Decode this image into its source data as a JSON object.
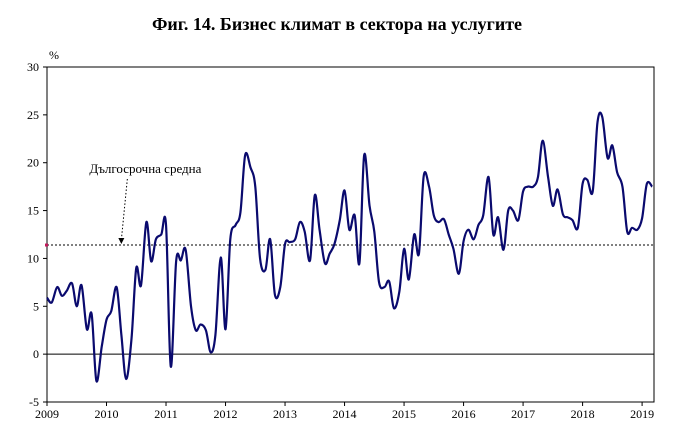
{
  "title": "Фиг. 14. Бизнес климат в сектора на услугите",
  "chart_data": {
    "type": "line",
    "title": "Фиг. 14. Бизнес климат в сектора на услугите",
    "ylabel": "%",
    "ylim": [
      -5,
      30
    ],
    "yticks": [
      -5,
      0,
      5,
      10,
      15,
      20,
      25,
      30
    ],
    "xlim": [
      2009,
      2019.2
    ],
    "xticks": [
      2009,
      2010,
      2011,
      2012,
      2013,
      2014,
      2015,
      2016,
      2017,
      2018,
      2019
    ],
    "xtick_labels": [
      "2009",
      "2010",
      "2011",
      "2012",
      "2013",
      "2014",
      "2015",
      "2016",
      "2017",
      "2018",
      "2019"
    ],
    "grid": false,
    "reference_line": {
      "label": "Дългосрочна средна",
      "value": 11.4
    },
    "series": [
      {
        "color": "#0a0a6e",
        "points": [
          [
            2009.0,
            5.9
          ],
          [
            2009.08,
            5.4
          ],
          [
            2009.17,
            7.0
          ],
          [
            2009.25,
            6.1
          ],
          [
            2009.33,
            6.6
          ],
          [
            2009.42,
            7.4
          ],
          [
            2009.5,
            5.0
          ],
          [
            2009.58,
            7.2
          ],
          [
            2009.67,
            2.6
          ],
          [
            2009.75,
            4.2
          ],
          [
            2009.83,
            -2.8
          ],
          [
            2009.92,
            0.8
          ],
          [
            2010.0,
            3.6
          ],
          [
            2010.08,
            4.5
          ],
          [
            2010.17,
            7.0
          ],
          [
            2010.25,
            2.0
          ],
          [
            2010.33,
            -2.6
          ],
          [
            2010.42,
            1.6
          ],
          [
            2010.5,
            9.0
          ],
          [
            2010.58,
            7.2
          ],
          [
            2010.67,
            13.8
          ],
          [
            2010.75,
            9.7
          ],
          [
            2010.83,
            12.0
          ],
          [
            2010.92,
            12.5
          ],
          [
            2011.0,
            13.5
          ],
          [
            2011.08,
            -1.3
          ],
          [
            2011.17,
            9.7
          ],
          [
            2011.25,
            9.8
          ],
          [
            2011.33,
            10.9
          ],
          [
            2011.42,
            5.0
          ],
          [
            2011.5,
            2.5
          ],
          [
            2011.58,
            3.1
          ],
          [
            2011.67,
            2.5
          ],
          [
            2011.75,
            0.2
          ],
          [
            2011.83,
            2.0
          ],
          [
            2011.92,
            10.1
          ],
          [
            2012.0,
            2.6
          ],
          [
            2012.08,
            12.0
          ],
          [
            2012.17,
            13.5
          ],
          [
            2012.25,
            14.8
          ],
          [
            2012.33,
            20.8
          ],
          [
            2012.42,
            19.5
          ],
          [
            2012.5,
            17.5
          ],
          [
            2012.58,
            10.0
          ],
          [
            2012.67,
            8.8
          ],
          [
            2012.75,
            12.0
          ],
          [
            2012.83,
            6.2
          ],
          [
            2012.92,
            7.0
          ],
          [
            2013.0,
            11.5
          ],
          [
            2013.08,
            11.7
          ],
          [
            2013.17,
            12.0
          ],
          [
            2013.25,
            13.8
          ],
          [
            2013.33,
            12.8
          ],
          [
            2013.42,
            9.8
          ],
          [
            2013.5,
            16.6
          ],
          [
            2013.58,
            13.0
          ],
          [
            2013.67,
            9.5
          ],
          [
            2013.75,
            10.5
          ],
          [
            2013.83,
            11.5
          ],
          [
            2013.92,
            14.0
          ],
          [
            2014.0,
            17.1
          ],
          [
            2014.08,
            13.0
          ],
          [
            2014.17,
            14.5
          ],
          [
            2014.25,
            9.5
          ],
          [
            2014.33,
            20.8
          ],
          [
            2014.42,
            15.5
          ],
          [
            2014.5,
            12.8
          ],
          [
            2014.58,
            7.5
          ],
          [
            2014.67,
            7.0
          ],
          [
            2014.75,
            7.6
          ],
          [
            2014.83,
            4.8
          ],
          [
            2014.92,
            6.5
          ],
          [
            2015.0,
            11.0
          ],
          [
            2015.08,
            7.8
          ],
          [
            2015.17,
            12.5
          ],
          [
            2015.25,
            10.5
          ],
          [
            2015.33,
            18.6
          ],
          [
            2015.42,
            17.5
          ],
          [
            2015.5,
            14.5
          ],
          [
            2015.58,
            13.8
          ],
          [
            2015.67,
            14.1
          ],
          [
            2015.75,
            12.5
          ],
          [
            2015.83,
            11.0
          ],
          [
            2015.92,
            8.4
          ],
          [
            2016.0,
            11.8
          ],
          [
            2016.08,
            13.0
          ],
          [
            2016.17,
            12.0
          ],
          [
            2016.25,
            13.5
          ],
          [
            2016.33,
            14.5
          ],
          [
            2016.42,
            18.5
          ],
          [
            2016.5,
            12.5
          ],
          [
            2016.58,
            14.3
          ],
          [
            2016.67,
            10.9
          ],
          [
            2016.75,
            15.0
          ],
          [
            2016.83,
            15.0
          ],
          [
            2016.92,
            14.0
          ],
          [
            2017.0,
            17.0
          ],
          [
            2017.08,
            17.5
          ],
          [
            2017.17,
            17.5
          ],
          [
            2017.25,
            18.5
          ],
          [
            2017.33,
            22.3
          ],
          [
            2017.42,
            18.5
          ],
          [
            2017.5,
            15.5
          ],
          [
            2017.58,
            17.2
          ],
          [
            2017.67,
            14.6
          ],
          [
            2017.75,
            14.3
          ],
          [
            2017.83,
            14.0
          ],
          [
            2017.92,
            13.2
          ],
          [
            2018.0,
            17.8
          ],
          [
            2018.08,
            18.2
          ],
          [
            2018.17,
            17.0
          ],
          [
            2018.25,
            24.2
          ],
          [
            2018.33,
            24.8
          ],
          [
            2018.42,
            20.5
          ],
          [
            2018.5,
            21.8
          ],
          [
            2018.58,
            19.0
          ],
          [
            2018.67,
            17.5
          ],
          [
            2018.75,
            12.8
          ],
          [
            2018.83,
            13.2
          ],
          [
            2018.92,
            13.0
          ],
          [
            2019.0,
            14.2
          ],
          [
            2019.08,
            17.8
          ],
          [
            2019.17,
            17.5
          ]
        ]
      }
    ]
  }
}
